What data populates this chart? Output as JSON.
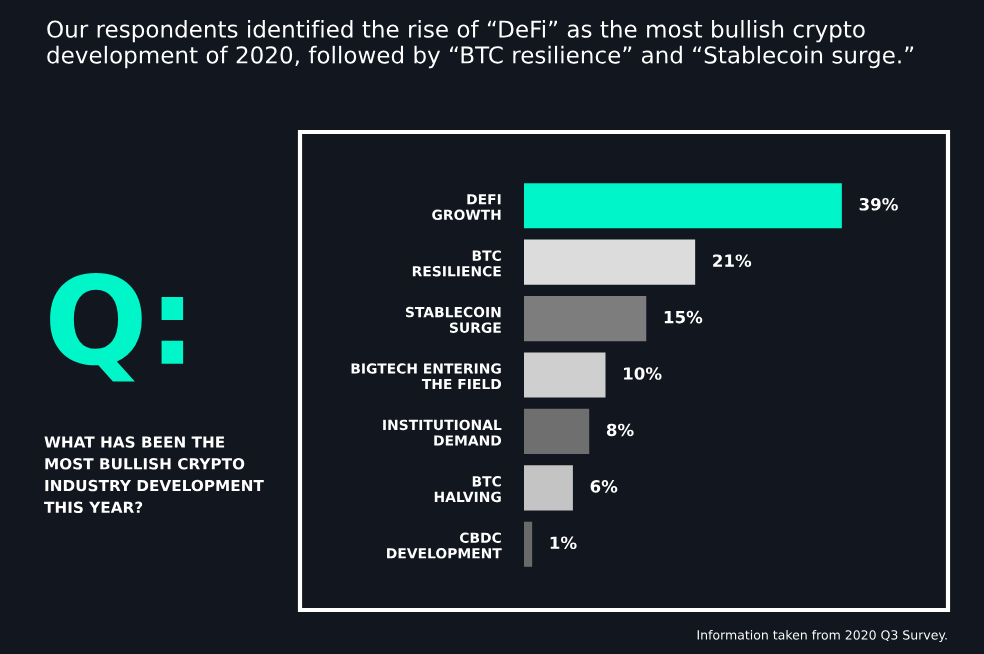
{
  "chart_data": {
    "type": "bar",
    "orientation": "horizontal",
    "title": "Our respondents identified the rise of “DeFi” as the most bullish crypto development of 2020, followed by “BTC resilience” and “Stablecoin surge.”",
    "categories": [
      "DEFI\nGROWTH",
      "BTC\nRESILIENCE",
      "STABLECOIN\nSURGE",
      "BIGTECH ENTERING\nTHE FIELD",
      "INSTITUTIONAL\nDEMAND",
      "BTC\nHALVING",
      "CBDC\nDEVELOPMENT"
    ],
    "values": [
      39,
      21,
      15,
      10,
      8,
      6,
      1
    ],
    "colors": [
      "#00f5c8",
      "#dcdcdc",
      "#7d7d7d",
      "#cfcfcf",
      "#6f6f6f",
      "#c4c4c4",
      "#6a6a6a"
    ],
    "value_labels": [
      "39%",
      "21%",
      "15%",
      "10%",
      "8%",
      "6%",
      "1%"
    ],
    "annotations": [
      "Q:",
      "WHAT HAS BEEN THE\nMOST BULLISH CRYPTO\nINDUSTRY DEVELOPMENT\nTHIS YEAR?",
      "Information taken from 2020 Q3 Survey."
    ],
    "grid": false,
    "legend": false,
    "tick_labels": "y"
  }
}
